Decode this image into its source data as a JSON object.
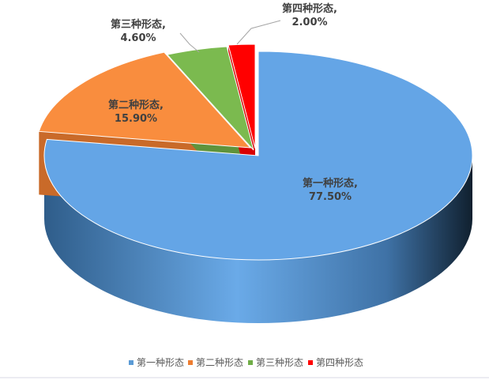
{
  "chart_data": {
    "type": "pie",
    "style": "3d",
    "title": "",
    "categories": [
      "第一种形态",
      "第二种形态",
      "第三种形态",
      "第四种形态"
    ],
    "values": [
      77.5,
      15.9,
      4.6,
      2.0
    ],
    "value_labels": [
      "77.50%",
      "15.90%",
      "4.60%",
      "2.00%"
    ],
    "colors": [
      "#5B9BD5",
      "#ED7D31",
      "#70AD47",
      "#FF0000"
    ],
    "legend_position": "bottom",
    "exploded": [
      "第二种形态",
      "第三种形态",
      "第四种形态"
    ]
  }
}
